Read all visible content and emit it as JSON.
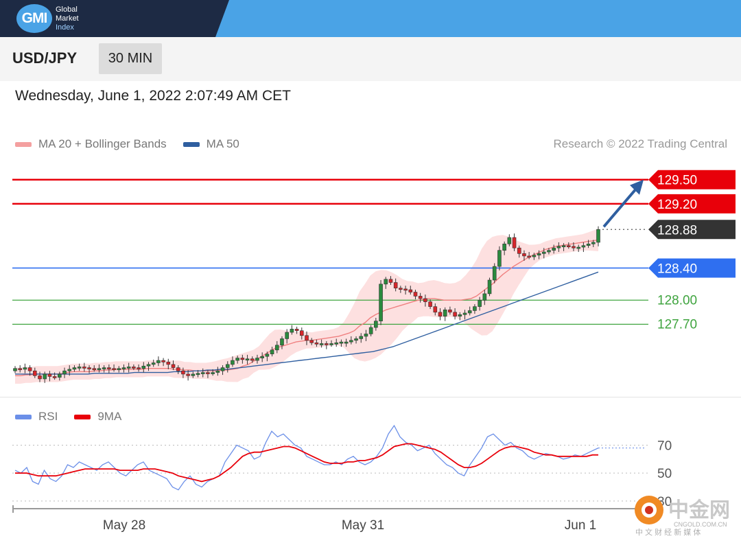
{
  "brand": {
    "logo": "GMI",
    "line1": "Global",
    "line2": "Market",
    "line3": "Index"
  },
  "instrument": {
    "pair": "USD/JPY",
    "timeframe": "30 MIN"
  },
  "datetime": "Wednesday, June 1, 2022 2:07:49 AM CET",
  "legend": {
    "ma20": "MA 20 + Bollinger Bands",
    "ma50": "MA 50",
    "credit": "Research © 2022 Trading Central"
  },
  "rsi_legend": {
    "rsi": "RSI",
    "ma9": "9MA"
  },
  "watermark": {
    "name": "中金网",
    "url": "CNGOLD.COM.CN",
    "tagline": "中 文 财 经 新 媒 体"
  },
  "colors": {
    "resistance": "#e8000a",
    "pivot": "#2f6ff0",
    "support": "#3fa43f",
    "current": "#333333",
    "ma20": "#f08080",
    "ma50": "#2f5fa0",
    "rsi": "#6b8fe8",
    "rsi_ma": "#e8000a"
  },
  "chart_data": [
    {
      "type": "candlestick",
      "x_ticks": [
        "May 28",
        "May 31",
        "Jun 1"
      ],
      "ylim": [
        126.9,
        129.6
      ],
      "current_price": 128.88,
      "levels": [
        {
          "label": "129.50",
          "value": 129.5,
          "kind": "resistance"
        },
        {
          "label": "129.20",
          "value": 129.2,
          "kind": "resistance"
        },
        {
          "label": "128.88",
          "value": 128.88,
          "kind": "current"
        },
        {
          "label": "128.40",
          "value": 128.4,
          "kind": "pivot"
        },
        {
          "label": "128.00",
          "value": 128.0,
          "kind": "support"
        },
        {
          "label": "127.70",
          "value": 127.7,
          "kind": "support"
        }
      ],
      "close": [
        127.15,
        127.14,
        127.16,
        127.12,
        127.06,
        127.02,
        127.08,
        127.05,
        127.04,
        127.08,
        127.12,
        127.14,
        127.16,
        127.17,
        127.16,
        127.15,
        127.14,
        127.15,
        127.16,
        127.15,
        127.14,
        127.15,
        127.16,
        127.17,
        127.16,
        127.15,
        127.18,
        127.2,
        127.22,
        127.25,
        127.23,
        127.2,
        127.16,
        127.12,
        127.08,
        127.06,
        127.08,
        127.09,
        127.1,
        127.09,
        127.1,
        127.12,
        127.16,
        127.2,
        127.25,
        127.28,
        127.26,
        127.27,
        127.25,
        127.28,
        127.3,
        127.33,
        127.38,
        127.44,
        127.52,
        127.6,
        127.64,
        127.62,
        127.56,
        127.5,
        127.47,
        127.46,
        127.46,
        127.45,
        127.46,
        127.47,
        127.48,
        127.48,
        127.5,
        127.52,
        127.55,
        127.58,
        127.66,
        127.74,
        128.2,
        128.26,
        128.22,
        128.15,
        128.14,
        128.13,
        128.1,
        128.05,
        128.02,
        127.98,
        127.92,
        127.85,
        127.8,
        127.88,
        127.85,
        127.8,
        127.82,
        127.84,
        127.87,
        127.92,
        128.0,
        128.08,
        128.25,
        128.42,
        128.62,
        128.7,
        128.78,
        128.65,
        128.58,
        128.55,
        128.54,
        128.56,
        128.58,
        128.6,
        128.62,
        128.65,
        128.67,
        128.68,
        128.67,
        128.65,
        128.66,
        128.68,
        128.7,
        128.72,
        128.88
      ],
      "ma20": [
        127.06,
        127.06,
        127.07,
        127.07,
        127.08,
        127.08,
        127.08,
        127.08,
        127.08,
        127.09,
        127.1,
        127.11,
        127.11,
        127.11,
        127.11,
        127.12,
        127.12,
        127.13,
        127.13,
        127.14,
        127.14,
        127.14,
        127.14,
        127.14,
        127.14,
        127.15,
        127.15,
        127.15,
        127.15,
        127.15,
        127.14,
        127.14,
        127.13,
        127.13,
        127.12,
        127.12,
        127.12,
        127.12,
        127.12,
        127.13,
        127.13,
        127.14,
        127.15,
        127.18,
        127.2,
        127.24,
        127.28,
        127.32,
        127.36,
        127.4,
        127.42,
        127.44,
        127.46,
        127.48,
        127.49,
        127.5,
        127.5,
        127.51,
        127.52,
        127.53,
        127.54,
        127.55,
        127.57,
        127.59,
        127.62,
        127.68,
        127.72,
        127.78,
        127.82,
        127.85,
        127.88,
        127.9,
        127.92,
        127.94,
        127.96,
        127.98,
        128.0,
        128.01,
        128.02,
        128.02,
        128.01,
        128.0,
        128.0,
        128.0,
        128.0,
        128.01,
        128.02,
        128.05,
        128.1,
        128.15,
        128.2,
        128.26,
        128.32,
        128.37,
        128.42,
        128.46,
        128.5,
        128.54,
        128.57,
        128.6,
        128.63,
        128.65,
        128.67,
        128.68,
        128.69,
        128.7,
        128.71,
        128.72,
        128.73,
        128.74,
        128.75
      ],
      "ma50": [
        127.08,
        127.08,
        127.08,
        127.08,
        127.08,
        127.08,
        127.08,
        127.08,
        127.08,
        127.08,
        127.08,
        127.08,
        127.09,
        127.09,
        127.09,
        127.09,
        127.09,
        127.09,
        127.1,
        127.1,
        127.1,
        127.1,
        127.1,
        127.1,
        127.11,
        127.11,
        127.11,
        127.12,
        127.12,
        127.13,
        127.13,
        127.14,
        127.14,
        127.15,
        127.16,
        127.17,
        127.18,
        127.19,
        127.2,
        127.21,
        127.22,
        127.23,
        127.24,
        127.25,
        127.26,
        127.27,
        127.28,
        127.29,
        127.3,
        127.31,
        127.32,
        127.33,
        127.34,
        127.35,
        127.36,
        127.38,
        127.4,
        127.42,
        127.45,
        127.48,
        127.51,
        127.54,
        127.57,
        127.6,
        127.63,
        127.66,
        127.69,
        127.72,
        127.75,
        127.78,
        127.81,
        127.84,
        127.87,
        127.9,
        127.93,
        127.96,
        127.99,
        128.02,
        128.05,
        128.08,
        128.11,
        128.14,
        128.17,
        128.2,
        128.23,
        128.26,
        128.29,
        128.32,
        128.35
      ]
    },
    {
      "type": "line",
      "title": "RSI",
      "ylim": [
        25,
        85
      ],
      "y_ticks": [
        70,
        50,
        30
      ],
      "series": [
        {
          "name": "RSI",
          "values": [
            52,
            50,
            54,
            44,
            42,
            52,
            46,
            44,
            48,
            56,
            54,
            58,
            56,
            54,
            52,
            56,
            58,
            54,
            50,
            48,
            52,
            56,
            58,
            52,
            50,
            48,
            46,
            40,
            38,
            44,
            48,
            42,
            40,
            44,
            46,
            48,
            58,
            64,
            70,
            68,
            66,
            60,
            62,
            72,
            80,
            76,
            78,
            74,
            70,
            68,
            62,
            60,
            58,
            56,
            56,
            58,
            56,
            60,
            62,
            58,
            56,
            58,
            62,
            68,
            78,
            84,
            76,
            72,
            70,
            66,
            68,
            70,
            64,
            60,
            56,
            54,
            50,
            48,
            56,
            62,
            68,
            76,
            78,
            74,
            70,
            72,
            68,
            66,
            62,
            60,
            62,
            64,
            63,
            62,
            60,
            61,
            63,
            62,
            64,
            66,
            68
          ]
        },
        {
          "name": "9MA",
          "values": [
            50,
            50,
            50,
            49,
            48,
            48,
            48,
            48,
            49,
            50,
            51,
            52,
            53,
            53,
            53,
            53,
            53,
            53,
            52,
            52,
            52,
            52,
            53,
            53,
            53,
            52,
            51,
            50,
            48,
            47,
            46,
            45,
            44,
            45,
            46,
            48,
            51,
            54,
            58,
            62,
            64,
            65,
            65,
            66,
            67,
            68,
            69,
            69,
            68,
            66,
            64,
            62,
            60,
            58,
            57,
            57,
            57,
            58,
            58,
            59,
            59,
            60,
            61,
            63,
            66,
            69,
            70,
            71,
            71,
            70,
            69,
            68,
            67,
            65,
            62,
            59,
            56,
            54,
            54,
            55,
            57,
            60,
            63,
            66,
            68,
            69,
            69,
            68,
            67,
            65,
            64,
            63,
            63,
            62,
            62,
            62,
            62,
            62,
            62,
            63,
            63
          ]
        }
      ]
    }
  ]
}
